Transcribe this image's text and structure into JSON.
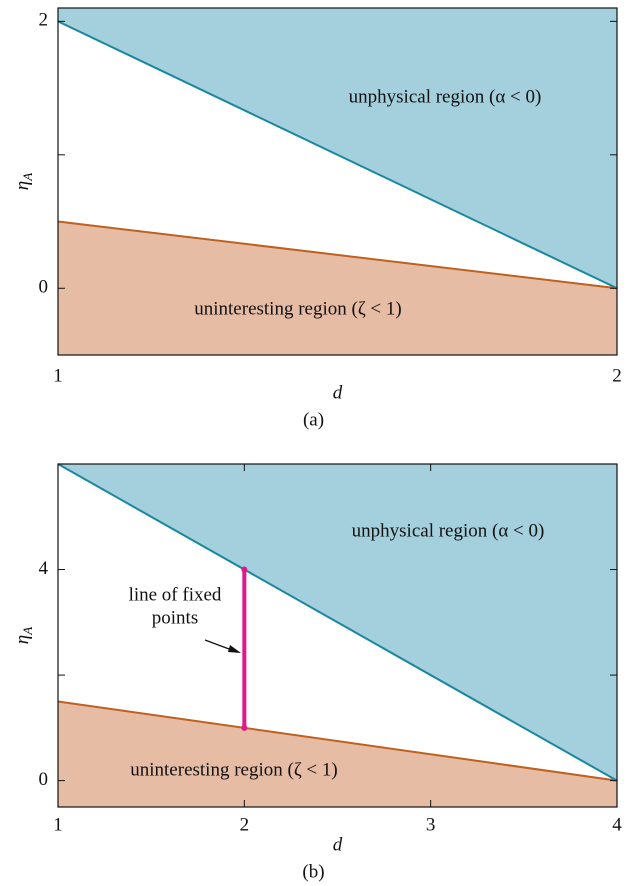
{
  "chart_data": [
    {
      "type": "region",
      "caption": "(a)",
      "xlabel": "d",
      "ylabel": {
        "symbol": "η",
        "subscript": "A"
      },
      "xlim": [
        1,
        2
      ],
      "xticks": [
        1,
        2
      ],
      "ylim": [
        -0.5,
        2.1
      ],
      "yticks": [
        0,
        2
      ],
      "y_minor_ticks": [
        1
      ],
      "series": [
        {
          "color": "#1a87a0",
          "fill": "#a3d0dc",
          "fill_to": "top",
          "x": [
            1,
            2
          ],
          "y": [
            2,
            0
          ]
        },
        {
          "color": "#c0601f",
          "fill": "#e6bca5",
          "fill_to": "bottom",
          "x": [
            1,
            2
          ],
          "y": [
            0.5,
            0
          ]
        }
      ],
      "annotations": [
        "unphysical region (α < 0)",
        "uninteresting region (ζ < 1)"
      ]
    },
    {
      "type": "region",
      "caption": "(b)",
      "xlabel": "d",
      "ylabel": {
        "symbol": "η",
        "subscript": "A"
      },
      "xlim": [
        1,
        4
      ],
      "xticks": [
        1,
        2,
        3,
        4
      ],
      "ylim": [
        -0.5,
        6
      ],
      "yticks": [
        0,
        4
      ],
      "y_minor_ticks": [
        2
      ],
      "series": [
        {
          "color": "#1a87a0",
          "fill": "#a3d0dc",
          "fill_to": "top",
          "x": [
            1,
            4
          ],
          "y": [
            6,
            0
          ]
        },
        {
          "color": "#c0601f",
          "fill": "#e6bca5",
          "fill_to": "bottom",
          "x": [
            1,
            4
          ],
          "y": [
            1.5,
            0
          ]
        },
        {
          "color": "#e0198a",
          "x": [
            2,
            2
          ],
          "y": [
            1,
            4
          ]
        }
      ],
      "annotations": [
        "unphysical region (α < 0)",
        "uninteresting region (ζ < 1)",
        {
          "lines": [
            "line of fixed",
            "points"
          ]
        }
      ]
    }
  ]
}
